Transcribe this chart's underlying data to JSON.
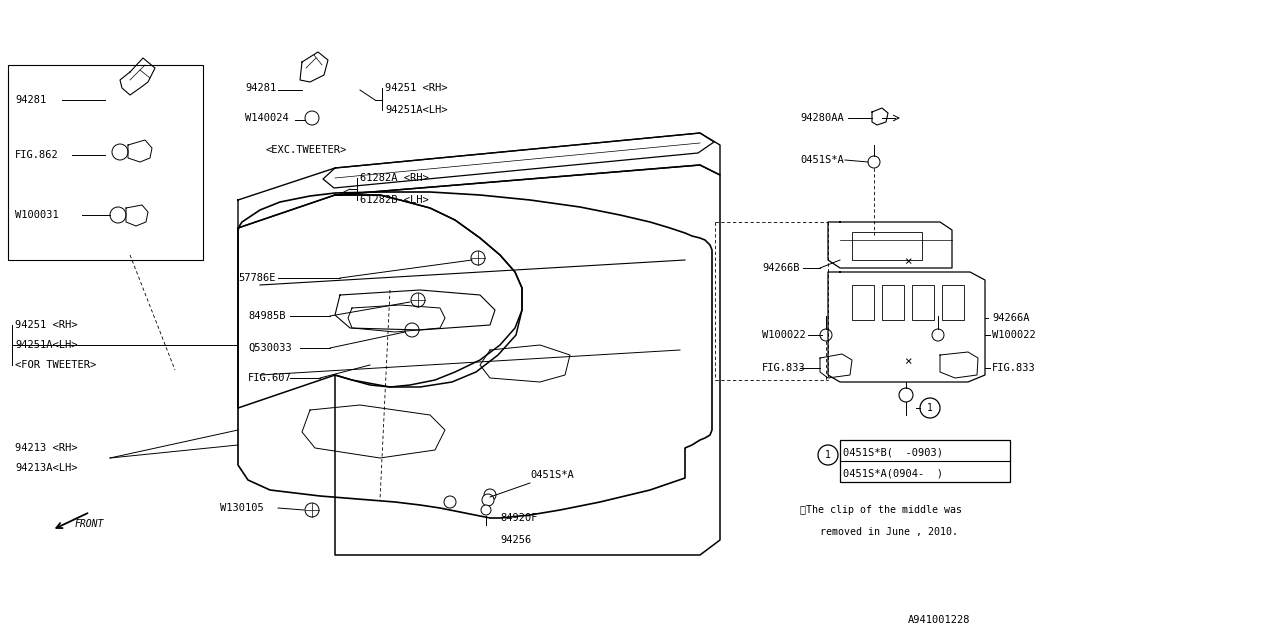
{
  "bg_color": "#ffffff",
  "line_color": "#000000",
  "font_size": 7.5,
  "fig_width": 12.8,
  "fig_height": 6.4,
  "diagram_id": "A941001228",
  "note_line1": "※The clip of the middle was",
  "note_line2": "removed in June , 2010.",
  "legend_line1": "0451S*B(  -0903)",
  "legend_line2": "0451S*A(0904-  )"
}
